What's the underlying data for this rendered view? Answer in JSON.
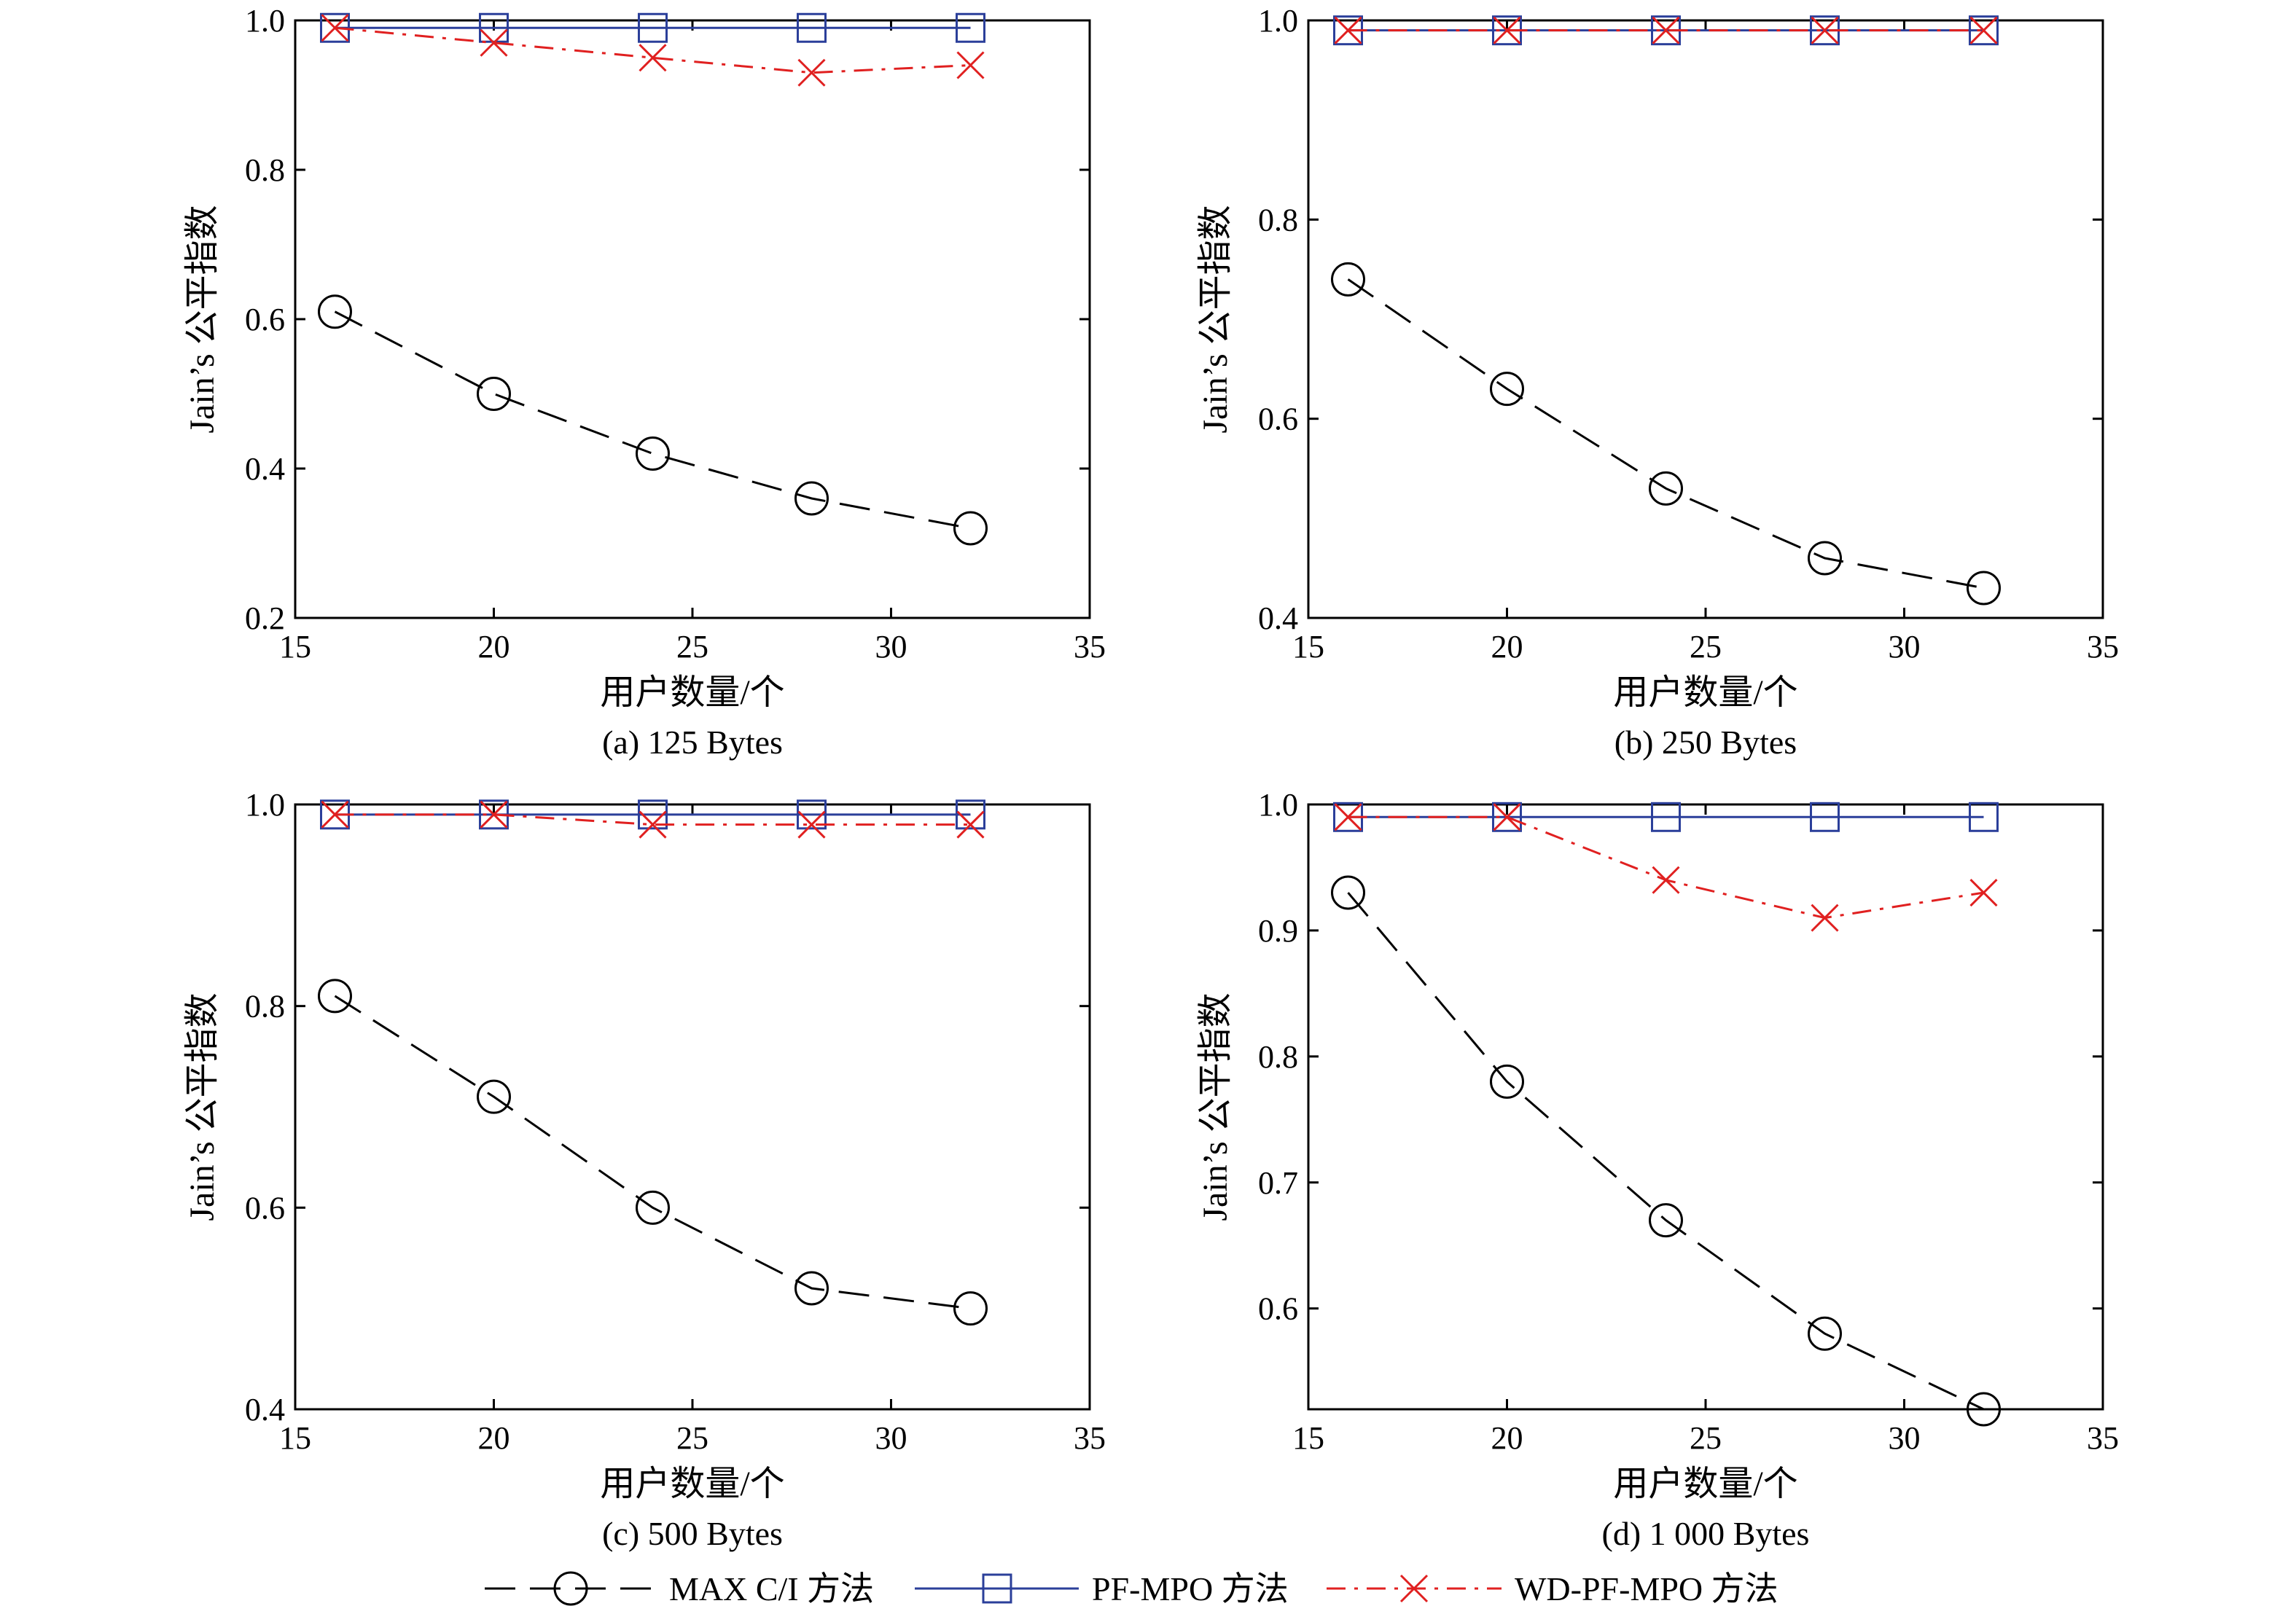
{
  "series_styles": [
    {
      "legend_label": "MAX C/I 方法",
      "color": "#000000",
      "marker": "circle",
      "dash": "long-dash"
    },
    {
      "legend_label": "PF-MPO 方法",
      "color": "#2b3f9a",
      "marker": "square",
      "dash": "solid"
    },
    {
      "legend_label": "WD-PF-MPO 方法",
      "color": "#e02020",
      "marker": "x",
      "dash": "dash-dot"
    }
  ],
  "chart_data": [
    {
      "type": "line",
      "caption": "(a) 125 Bytes",
      "xlabel": "用户数量/个",
      "ylabel": "Jain’s 公平指数",
      "xlim": [
        15,
        35
      ],
      "ylim": [
        0.2,
        1.0
      ],
      "xticks": [
        "15",
        "20",
        "25",
        "30",
        "35"
      ],
      "yticks": [
        "0.2",
        "0.4",
        "0.6",
        "0.8",
        "1.0"
      ],
      "x": [
        16,
        20,
        24,
        28,
        32
      ],
      "series": [
        {
          "name": "MAX C/I 方法",
          "values": [
            0.61,
            0.5,
            0.42,
            0.36,
            0.32
          ]
        },
        {
          "name": "PF-MPO 方法",
          "values": [
            0.99,
            0.99,
            0.99,
            0.99,
            0.99
          ]
        },
        {
          "name": "WD-PF-MPO 方法",
          "values": [
            0.99,
            0.97,
            0.95,
            0.93,
            0.94
          ]
        }
      ]
    },
    {
      "type": "line",
      "caption": "(b) 250 Bytes",
      "xlabel": "用户数量/个",
      "ylabel": "Jain’s 公平指数",
      "xlim": [
        15,
        35
      ],
      "ylim": [
        0.4,
        1.0
      ],
      "xticks": [
        "15",
        "20",
        "25",
        "30",
        "35"
      ],
      "yticks": [
        "0.4",
        "0.6",
        "0.8",
        "1.0"
      ],
      "x": [
        16,
        20,
        24,
        28,
        32
      ],
      "series": [
        {
          "name": "MAX C/I 方法",
          "values": [
            0.74,
            0.63,
            0.53,
            0.46,
            0.43
          ]
        },
        {
          "name": "PF-MPO 方法",
          "values": [
            0.99,
            0.99,
            0.99,
            0.99,
            0.99
          ]
        },
        {
          "name": "WD-PF-MPO 方法",
          "values": [
            0.99,
            0.99,
            0.99,
            0.99,
            0.99
          ]
        }
      ]
    },
    {
      "type": "line",
      "caption": "(c) 500 Bytes",
      "xlabel": "用户数量/个",
      "ylabel": "Jain’s 公平指数",
      "xlim": [
        15,
        35
      ],
      "ylim": [
        0.4,
        1.0
      ],
      "xticks": [
        "15",
        "20",
        "25",
        "30",
        "35"
      ],
      "yticks": [
        "0.4",
        "0.6",
        "0.8",
        "1.0"
      ],
      "x": [
        16,
        20,
        24,
        28,
        32
      ],
      "series": [
        {
          "name": "MAX C/I 方法",
          "values": [
            0.81,
            0.71,
            0.6,
            0.52,
            0.5
          ]
        },
        {
          "name": "PF-MPO 方法",
          "values": [
            0.99,
            0.99,
            0.99,
            0.99,
            0.99
          ]
        },
        {
          "name": "WD-PF-MPO 方法",
          "values": [
            0.99,
            0.99,
            0.98,
            0.98,
            0.98
          ]
        }
      ]
    },
    {
      "type": "line",
      "caption": "(d) 1 000 Bytes",
      "xlabel": "用户数量/个",
      "ylabel": "Jain’s 公平指数",
      "xlim": [
        15,
        35
      ],
      "ylim": [
        0.52,
        1.0
      ],
      "xticks": [
        "15",
        "20",
        "25",
        "30",
        "35"
      ],
      "yticks": [
        "0.6",
        "0.7",
        "0.8",
        "0.9",
        "1.0"
      ],
      "x": [
        16,
        20,
        24,
        28,
        32
      ],
      "series": [
        {
          "name": "MAX C/I 方法",
          "values": [
            0.93,
            0.78,
            0.67,
            0.58,
            0.52
          ]
        },
        {
          "name": "PF-MPO 方法",
          "values": [
            0.99,
            0.99,
            0.99,
            0.99,
            0.99
          ]
        },
        {
          "name": "WD-PF-MPO 方法",
          "values": [
            0.99,
            0.99,
            0.94,
            0.91,
            0.93
          ]
        }
      ]
    }
  ]
}
